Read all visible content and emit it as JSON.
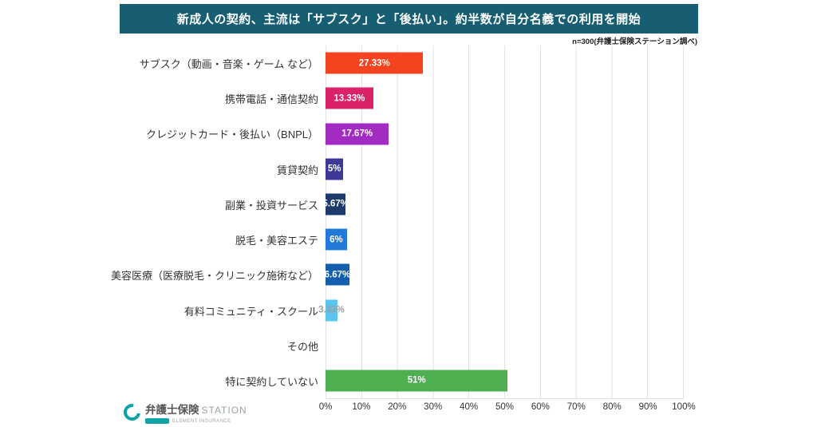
{
  "header": {
    "title": "新成人の契約、主流は「サブスク」と「後払い」。約半数が自分名義での利用を開始",
    "note": "n=300(弁護士保険ステーション調べ)",
    "bg_color": "#175E73"
  },
  "chart_data": {
    "type": "bar",
    "orientation": "horizontal",
    "title": "新成人の契約、主流は「サブスク」と「後払い」。約半数が自分名義での利用を開始",
    "categories": [
      "サブスク（動画・音楽・ゲーム など）",
      "携帯電話・通信契約",
      "クレジットカード・後払い（BNPL）",
      "賃貸契約",
      "副業・投資サービス",
      "脱毛・美容エステ",
      "美容医療（医療脱毛・クリニック施術など）",
      "有料コミュニティ・スクール",
      "その他",
      "特に契約していない"
    ],
    "values": [
      27.33,
      13.33,
      17.67,
      5,
      5.67,
      6,
      6.67,
      3.33,
      0,
      51
    ],
    "labels": [
      "27.33%",
      "13.33%",
      "17.67%",
      "5%",
      "5.67%",
      "6%",
      "6.67%",
      "3.33%",
      "",
      "51%"
    ],
    "colors": [
      "#F4431F",
      "#DB2268",
      "#A22BC1",
      "#3C3A96",
      "#1C3A6B",
      "#2379D8",
      "#135FAE",
      "#5AC4EF",
      "#CCCCCC",
      "#4DAF50"
    ],
    "label_colors": [
      "#FFFFFF",
      "#FFFFFF",
      "#FFFFFF",
      "#FFFFFF",
      "#FFFFFF",
      "#FFFFFF",
      "#FFFFFF",
      "#9E9E9E",
      "#FFFFFF",
      "#FFFFFF"
    ],
    "xlabel": "",
    "ylabel": "",
    "xlim": [
      0,
      100
    ],
    "grid": true,
    "x_ticks": [
      "0%",
      "10%",
      "20%",
      "30%",
      "40%",
      "50%",
      "60%",
      "70%",
      "80%",
      "90%",
      "100%"
    ]
  },
  "footer": {
    "brand": "弁護士保険",
    "brand_suffix": "STATION",
    "tagline": "ELEMENT INSURANCE"
  }
}
